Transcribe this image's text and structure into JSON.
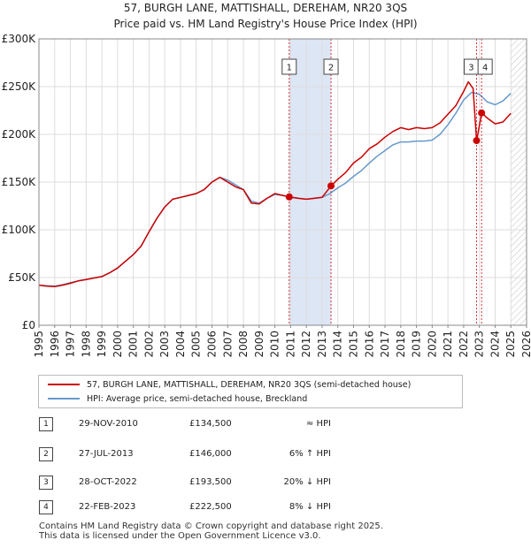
{
  "title_line1": "57, BURGH LANE, MATTISHALL, DEREHAM, NR20 3QS",
  "title_line2": "Price paid vs. HM Land Registry's House Price Index (HPI)",
  "colors": {
    "property": "#cc0000",
    "hpi": "#6699cc",
    "shade": "#dde6f5",
    "grid": "#dddddd",
    "marker": "#cc0000"
  },
  "legend": {
    "property_label": "57, BURGH LANE, MATTISHALL, DEREHAM, NR20 3QS (semi-detached house)",
    "hpi_label": "HPI: Average price, semi-detached house, Breckland"
  },
  "transactions": [
    {
      "num": "1",
      "date": "29-NOV-2010",
      "price": "£134,500",
      "relation": "≈ HPI"
    },
    {
      "num": "2",
      "date": "27-JUL-2013",
      "price": "£146,000",
      "relation": "6% ↑ HPI"
    },
    {
      "num": "3",
      "date": "28-OCT-2022",
      "price": "£193,500",
      "relation": "20% ↓ HPI"
    },
    {
      "num": "4",
      "date": "22-FEB-2023",
      "price": "£222,500",
      "relation": "8% ↓ HPI"
    }
  ],
  "footer_line1": "Contains HM Land Registry data © Crown copyright and database right 2025.",
  "footer_line2": "This data is licensed under the Open Government Licence v3.0.",
  "chart_data": {
    "type": "line",
    "title": "57, BURGH LANE, MATTISHALL, DEREHAM, NR20 3QS",
    "subtitle": "Price paid vs. HM Land Registry's House Price Index (HPI)",
    "xlabel": "",
    "ylabel": "",
    "xlim": [
      1995,
      2026
    ],
    "ylim": [
      0,
      300000
    ],
    "x_ticks": [
      1995,
      1996,
      1997,
      1998,
      1999,
      2000,
      2001,
      2002,
      2003,
      2004,
      2005,
      2006,
      2007,
      2008,
      2009,
      2010,
      2011,
      2012,
      2013,
      2014,
      2015,
      2016,
      2017,
      2018,
      2019,
      2020,
      2021,
      2022,
      2023,
      2024,
      2025,
      2026
    ],
    "y_ticks": [
      {
        "value": 0,
        "label": "£0"
      },
      {
        "value": 50000,
        "label": "£50K"
      },
      {
        "value": 100000,
        "label": "£100K"
      },
      {
        "value": 150000,
        "label": "£150K"
      },
      {
        "value": 200000,
        "label": "£200K"
      },
      {
        "value": 250000,
        "label": "£250K"
      },
      {
        "value": 300000,
        "label": "£300K"
      }
    ],
    "grid": true,
    "shaded_period": [
      2010.91,
      2013.57
    ],
    "hatched_future_from": 2025.0,
    "sale_markers": [
      {
        "num": "1",
        "x": 2010.91,
        "y": 134500
      },
      {
        "num": "2",
        "x": 2013.57,
        "y": 146000
      },
      {
        "num": "3",
        "x": 2022.82,
        "y": 193500
      },
      {
        "num": "4",
        "x": 2023.14,
        "y": 222500
      }
    ],
    "series": [
      {
        "name": "57, BURGH LANE, MATTISHALL, DEREHAM, NR20 3QS (semi-detached house)",
        "x": [
          1995,
          1995.5,
          1996,
          1996.5,
          1997,
          1997.5,
          1998,
          1998.5,
          1999,
          1999.5,
          2000,
          2000.5,
          2001,
          2001.5,
          2002,
          2002.5,
          2003,
          2003.5,
          2004,
          2004.5,
          2005,
          2005.5,
          2006,
          2006.5,
          2007,
          2007.5,
          2008,
          2008.5,
          2009,
          2009.5,
          2010,
          2010.5,
          2010.91,
          2011.5,
          2012,
          2012.5,
          2013,
          2013.57,
          2014,
          2014.5,
          2015,
          2015.5,
          2016,
          2016.5,
          2017,
          2017.5,
          2018,
          2018.5,
          2019,
          2019.5,
          2020,
          2020.5,
          2021,
          2021.5,
          2022,
          2022.3,
          2022.6,
          2022.82,
          2022.9,
          2023.14,
          2023.5,
          2024,
          2024.5,
          2025
        ],
        "values": [
          42000,
          41000,
          40500,
          42000,
          44000,
          46500,
          48000,
          49500,
          51000,
          55000,
          60000,
          67000,
          74000,
          83000,
          98000,
          112000,
          124000,
          132000,
          134000,
          136000,
          138000,
          142000,
          150000,
          155000,
          150000,
          145000,
          142000,
          128000,
          127000,
          133000,
          138000,
          136000,
          134500,
          133000,
          132000,
          133000,
          134000,
          146000,
          153000,
          160000,
          170000,
          176000,
          185000,
          190000,
          197000,
          203000,
          207000,
          205000,
          207000,
          206000,
          207000,
          212000,
          221000,
          230000,
          245000,
          255000,
          248000,
          193500,
          200000,
          222500,
          217000,
          211000,
          213000,
          222000
        ]
      },
      {
        "name": "HPI: Average price, semi-detached house, Breckland",
        "x": [
          1995,
          1995.5,
          1996,
          1996.5,
          1997,
          1997.5,
          1998,
          1998.5,
          1999,
          1999.5,
          2000,
          2000.5,
          2001,
          2001.5,
          2002,
          2002.5,
          2003,
          2003.5,
          2004,
          2004.5,
          2005,
          2005.5,
          2006,
          2006.5,
          2007,
          2007.5,
          2008,
          2008.5,
          2009,
          2009.5,
          2010,
          2010.5,
          2011,
          2011.5,
          2012,
          2012.5,
          2013,
          2013.5,
          2014,
          2014.5,
          2015,
          2015.5,
          2016,
          2016.5,
          2017,
          2017.5,
          2018,
          2018.5,
          2019,
          2019.5,
          2020,
          2020.5,
          2021,
          2021.5,
          2022,
          2022.5,
          2023,
          2023.5,
          2024,
          2024.5,
          2025
        ],
        "values": [
          42000,
          41500,
          41000,
          42500,
          44500,
          46500,
          48000,
          49500,
          51000,
          55000,
          60000,
          67000,
          74000,
          83000,
          98000,
          112000,
          124000,
          132000,
          134000,
          136000,
          138000,
          142000,
          150000,
          155000,
          152000,
          147000,
          142000,
          130000,
          128000,
          133000,
          137000,
          136000,
          134000,
          133000,
          132000,
          133000,
          134000,
          138000,
          144000,
          149000,
          156000,
          162000,
          170000,
          177000,
          183000,
          189000,
          192000,
          192000,
          193000,
          193000,
          194000,
          200000,
          210000,
          222000,
          236000,
          244000,
          242000,
          234000,
          231000,
          235000,
          243000
        ]
      }
    ]
  }
}
